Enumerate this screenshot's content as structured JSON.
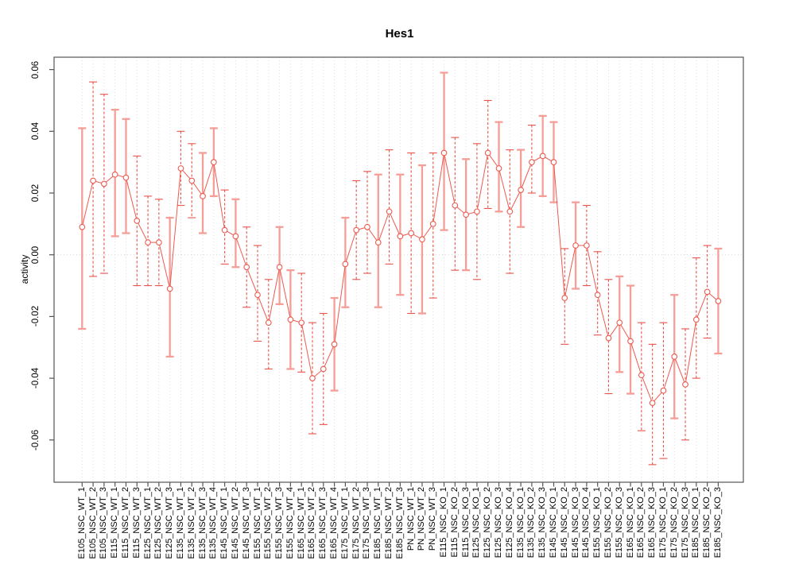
{
  "title": "Hes1",
  "axes": {
    "y_label": "activity",
    "y_tick_labels": [
      "0.06",
      "0.04",
      "0.02",
      "0.00",
      "-0.02",
      "-0.04",
      "-0.06"
    ],
    "y_ticks": [
      0.06,
      0.04,
      0.02,
      0.0,
      -0.02,
      -0.04,
      -0.06
    ]
  },
  "colors": {
    "point_line": "#ec5a50",
    "whisker_solid": "#f59e97",
    "whisker_dashed": "#e9534a",
    "grid": "#dcdcdc",
    "zero_line": "#d6d6d6",
    "axis": "#555555",
    "text": "#000000",
    "background": "#ffffff"
  },
  "chart_data": {
    "type": "scatter",
    "title": "Hes1",
    "xlabel": "",
    "ylabel": "activity",
    "ylim": [
      -0.0737,
      0.064
    ],
    "grid": "dotted vertical gridline per category; dotted horizontal line at y=0",
    "legend": "none",
    "marker": "open-circle with error bars, connected by line",
    "categories": [
      "E105_NSC_WT_1",
      "E105_NSC_WT_2",
      "E105_NSC_WT_3",
      "E115_NSC_WT_1",
      "E115_NSC_WT_2",
      "E115_NSC_WT_3",
      "E125_NSC_WT_1",
      "E125_NSC_WT_2",
      "E125_NSC_WT_3",
      "E135_NSC_WT_1",
      "E135_NSC_WT_2",
      "E135_NSC_WT_3",
      "E135_NSC_WT_4",
      "E145_NSC_WT_1",
      "E145_NSC_WT_2",
      "E145_NSC_WT_3",
      "E155_NSC_WT_1",
      "E155_NSC_WT_2",
      "E155_NSC_WT_3",
      "E155_NSC_WT_4",
      "E165_NSC_WT_1",
      "E165_NSC_WT_2",
      "E165_NSC_WT_3",
      "E165_NSC_WT_4",
      "E175_NSC_WT_1",
      "E175_NSC_WT_2",
      "E175_NSC_WT_3",
      "E185_NSC_WT_1",
      "E185_NSC_WT_2",
      "E185_NSC_WT_3",
      "PN_NSC_WT_1",
      "PN_NSC_WT_2",
      "PN_NSC_WT_3",
      "E115_NSC_KO_1",
      "E115_NSC_KO_2",
      "E115_NSC_KO_3",
      "E125_NSC_KO_1",
      "E125_NSC_KO_2",
      "E125_NSC_KO_3",
      "E125_NSC_KO_4",
      "E135_NSC_KO_1",
      "E135_NSC_KO_2",
      "E135_NSC_KO_3",
      "E145_NSC_KO_1",
      "E145_NSC_KO_2",
      "E145_NSC_KO_3",
      "E145_NSC_KO_4",
      "E155_NSC_KO_1",
      "E155_NSC_KO_2",
      "E155_NSC_KO_3",
      "E165_NSC_KO_1",
      "E165_NSC_KO_2",
      "E165_NSC_KO_3",
      "E175_NSC_KO_1",
      "E175_NSC_KO_2",
      "E175_NSC_KO_3",
      "E185_NSC_KO_1",
      "E185_NSC_KO_2",
      "E185_NSC_KO_3"
    ],
    "values": [
      0.009,
      0.024,
      0.023,
      0.026,
      0.025,
      0.011,
      0.004,
      0.004,
      -0.011,
      0.028,
      0.024,
      0.019,
      0.03,
      0.008,
      0.006,
      -0.004,
      -0.013,
      -0.022,
      -0.004,
      -0.021,
      -0.022,
      -0.04,
      -0.037,
      -0.029,
      -0.003,
      0.008,
      0.009,
      0.004,
      0.014,
      0.006,
      0.007,
      0.005,
      0.01,
      0.033,
      0.016,
      0.013,
      0.014,
      0.033,
      0.028,
      0.014,
      0.021,
      0.03,
      0.032,
      0.03,
      -0.014,
      0.003,
      0.003,
      -0.013,
      -0.027,
      -0.022,
      -0.028,
      -0.039,
      -0.048,
      -0.044,
      -0.033,
      -0.042,
      -0.021,
      -0.012,
      -0.015
    ],
    "ci_low": [
      -0.024,
      -0.007,
      -0.006,
      0.006,
      0.007,
      -0.01,
      -0.01,
      -0.01,
      -0.033,
      0.016,
      0.012,
      0.007,
      0.019,
      -0.003,
      -0.004,
      -0.017,
      -0.028,
      -0.037,
      -0.016,
      -0.037,
      -0.038,
      -0.058,
      -0.055,
      -0.044,
      -0.017,
      -0.008,
      -0.006,
      -0.017,
      -0.003,
      -0.013,
      -0.019,
      -0.019,
      -0.014,
      0.008,
      -0.005,
      -0.005,
      -0.008,
      0.015,
      0.014,
      -0.006,
      0.009,
      0.02,
      0.019,
      0.017,
      -0.029,
      -0.011,
      -0.01,
      -0.026,
      -0.045,
      -0.038,
      -0.045,
      -0.057,
      -0.068,
      -0.066,
      -0.053,
      -0.06,
      -0.04,
      -0.027,
      -0.032
    ],
    "ci_high": [
      0.041,
      0.056,
      0.052,
      0.047,
      0.044,
      0.032,
      0.019,
      0.018,
      0.012,
      0.04,
      0.036,
      0.033,
      0.041,
      0.021,
      0.018,
      0.009,
      0.003,
      -0.008,
      0.009,
      -0.005,
      -0.006,
      -0.022,
      -0.019,
      -0.014,
      0.012,
      0.024,
      0.027,
      0.026,
      0.034,
      0.026,
      0.033,
      0.029,
      0.033,
      0.059,
      0.038,
      0.031,
      0.036,
      0.05,
      0.043,
      0.034,
      0.034,
      0.042,
      0.045,
      0.043,
      0.002,
      0.017,
      0.016,
      0.001,
      -0.008,
      -0.007,
      -0.01,
      -0.022,
      -0.029,
      -0.022,
      -0.013,
      -0.024,
      -0.001,
      0.003,
      0.002
    ],
    "whisker_styles": [
      "s",
      "d",
      "d",
      "s",
      "s",
      "d",
      "d",
      "d",
      "s",
      "d",
      "d",
      "s",
      "s",
      "d",
      "s",
      "d",
      "d",
      "d",
      "s",
      "s",
      "d",
      "d",
      "d",
      "s",
      "s",
      "d",
      "d",
      "s",
      "d",
      "s",
      "d",
      "s",
      "d",
      "s",
      "d",
      "s",
      "d",
      "d",
      "s",
      "d",
      "s",
      "d",
      "s",
      "s",
      "d",
      "s",
      "d",
      "d",
      "d",
      "s",
      "s",
      "d",
      "d",
      "d",
      "s",
      "d",
      "d",
      "d",
      "s"
    ]
  }
}
